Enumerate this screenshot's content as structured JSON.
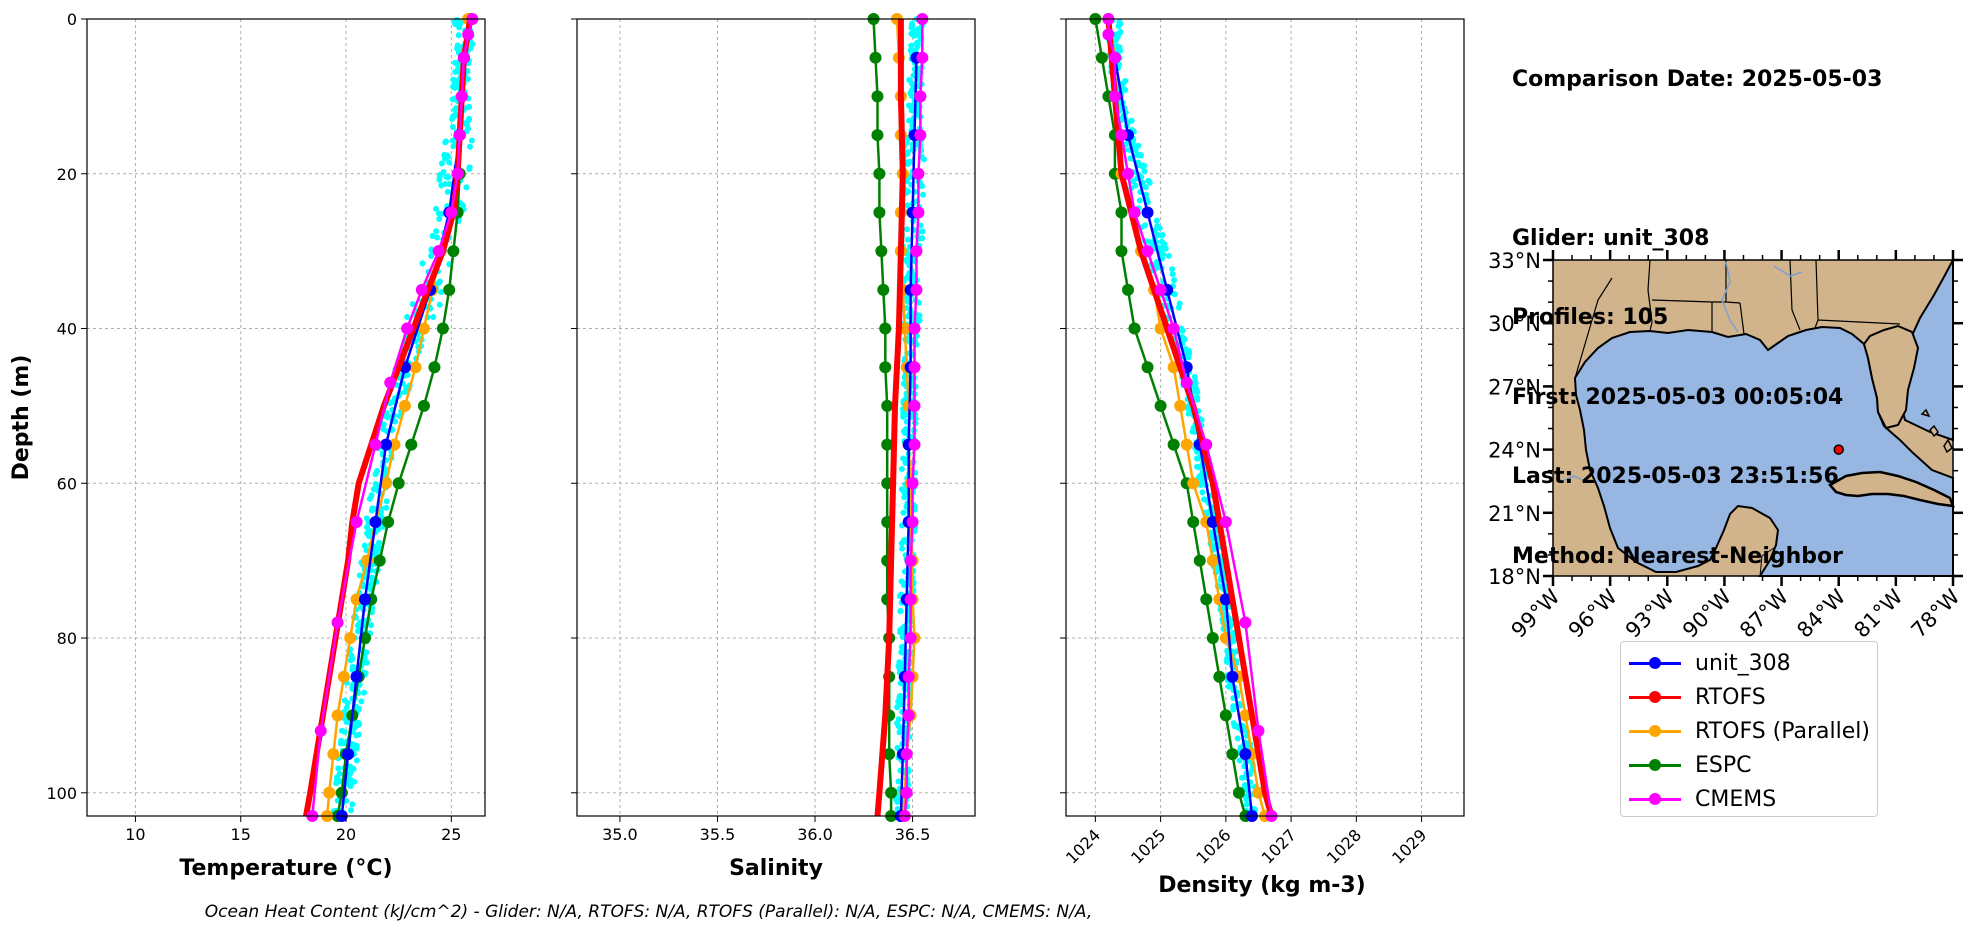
{
  "info": {
    "comparison_date": "Comparison Date: 2025-05-03",
    "glider": "Glider: unit_308",
    "profiles": "Profiles: 105",
    "first": "First: 2025-05-03 00:05:04",
    "last": "Last: 2025-05-03 23:51:56",
    "method": "Method: Nearest-Neighbor"
  },
  "footer": "Ocean Heat Content (kJ/cm^2) - Glider: N/A,  RTOFS: N/A,  RTOFS (Parallel): N/A,  ESPC: N/A,  CMEMS: N/A,",
  "colors": {
    "glider": "#0000ff",
    "glider_scatter": "#00ffff",
    "rtofs": "#ff0000",
    "rtofs_parallel": "#ffa500",
    "espc": "#008000",
    "cmems": "#ff00ff",
    "land": "#d2b48c",
    "ocean": "#97b6e1",
    "marker": "#ff0000"
  },
  "legend": [
    {
      "label": "unit_308",
      "color": "#0000ff"
    },
    {
      "label": "RTOFS",
      "color": "#ff0000"
    },
    {
      "label": "RTOFS (Parallel)",
      "color": "#ffa500"
    },
    {
      "label": "ESPC",
      "color": "#008000"
    },
    {
      "label": "CMEMS",
      "color": "#ff00ff"
    }
  ],
  "chart_data": [
    {
      "type": "line",
      "xlabel": "Temperature (°C)",
      "ylabel": "Depth (m)",
      "xlim": [
        7.7,
        26.6
      ],
      "ylim": [
        103,
        0
      ],
      "xticks": [
        10,
        15,
        20,
        25
      ],
      "yticks": [
        0,
        20,
        40,
        60,
        80,
        100
      ],
      "grid": true,
      "series": [
        {
          "name": "unit_308",
          "depth": [
            5,
            15,
            25,
            35,
            45,
            55,
            65,
            75,
            85,
            95,
            103
          ],
          "values": [
            25.6,
            25.4,
            24.9,
            24.0,
            22.8,
            21.9,
            21.4,
            20.9,
            20.5,
            20.1,
            19.8
          ]
        },
        {
          "name": "RTOFS",
          "depth": [
            0,
            5,
            10,
            15,
            20,
            25,
            30,
            35,
            40,
            45,
            50,
            55,
            60,
            65,
            70,
            75,
            80,
            85,
            90,
            95,
            100,
            103
          ],
          "values": [
            25.9,
            25.6,
            25.5,
            25.4,
            25.3,
            25.1,
            24.6,
            23.9,
            23.2,
            22.5,
            21.8,
            21.2,
            20.6,
            20.3,
            20.1,
            19.8,
            19.5,
            19.2,
            18.9,
            18.6,
            18.3,
            18.1
          ]
        },
        {
          "name": "RTOFS (Parallel)",
          "depth": [
            0,
            5,
            10,
            15,
            20,
            25,
            30,
            35,
            40,
            45,
            50,
            55,
            60,
            65,
            70,
            75,
            80,
            85,
            90,
            95,
            100,
            103
          ],
          "values": [
            25.8,
            25.6,
            25.5,
            25.4,
            25.3,
            25.0,
            24.5,
            24.1,
            23.7,
            23.3,
            22.8,
            22.3,
            21.9,
            21.4,
            21.0,
            20.5,
            20.2,
            19.9,
            19.6,
            19.4,
            19.2,
            19.1
          ]
        },
        {
          "name": "ESPC",
          "depth": [
            0,
            5,
            10,
            15,
            20,
            25,
            30,
            35,
            40,
            45,
            50,
            55,
            60,
            65,
            70,
            75,
            80,
            85,
            90,
            95,
            100,
            103
          ],
          "values": [
            25.9,
            25.6,
            25.5,
            25.4,
            25.4,
            25.3,
            25.1,
            24.9,
            24.6,
            24.2,
            23.7,
            23.1,
            22.5,
            22.0,
            21.6,
            21.2,
            20.9,
            20.6,
            20.3,
            20.0,
            19.8,
            19.6
          ]
        },
        {
          "name": "CMEMS",
          "depth": [
            0,
            2,
            5,
            10,
            15,
            20,
            25,
            30,
            35,
            40,
            47,
            55,
            65,
            78,
            92,
            103
          ],
          "values": [
            26.0,
            25.8,
            25.6,
            25.5,
            25.4,
            25.3,
            25.0,
            24.4,
            23.6,
            22.9,
            22.1,
            21.4,
            20.5,
            19.6,
            18.8,
            18.4
          ]
        }
      ]
    },
    {
      "type": "line",
      "xlabel": "Salinity",
      "xlim": [
        34.78,
        36.82
      ],
      "ylim": [
        103,
        0
      ],
      "xticks": [
        "35.0",
        "35.5",
        "36.0",
        "36.5"
      ],
      "yticks": [
        0,
        20,
        40,
        60,
        80,
        100
      ],
      "grid": true,
      "series": [
        {
          "name": "unit_308",
          "depth": [
            5,
            15,
            25,
            35,
            45,
            55,
            65,
            75,
            85,
            95,
            103
          ],
          "values": [
            36.52,
            36.51,
            36.5,
            36.49,
            36.49,
            36.48,
            36.48,
            36.47,
            36.46,
            36.45,
            36.44
          ]
        },
        {
          "name": "RTOFS",
          "depth": [
            0,
            10,
            20,
            30,
            40,
            50,
            60,
            70,
            80,
            90,
            100,
            103
          ],
          "values": [
            36.44,
            36.44,
            36.45,
            36.44,
            36.43,
            36.41,
            36.4,
            36.39,
            36.38,
            36.36,
            36.33,
            36.32
          ]
        },
        {
          "name": "RTOFS (Parallel)",
          "depth": [
            0,
            5,
            10,
            15,
            20,
            25,
            30,
            35,
            40,
            45,
            50,
            55,
            60,
            65,
            70,
            75,
            80,
            85,
            90,
            95,
            100,
            103
          ],
          "values": [
            36.42,
            36.43,
            36.44,
            36.44,
            36.45,
            36.44,
            36.44,
            36.45,
            36.46,
            36.47,
            36.48,
            36.48,
            36.49,
            36.49,
            36.5,
            36.5,
            36.51,
            36.5,
            36.49,
            36.47,
            36.46,
            36.45
          ]
        },
        {
          "name": "ESPC",
          "depth": [
            0,
            5,
            10,
            15,
            20,
            25,
            30,
            35,
            40,
            45,
            50,
            55,
            60,
            65,
            70,
            75,
            80,
            85,
            90,
            95,
            100,
            103
          ],
          "values": [
            36.3,
            36.31,
            36.32,
            36.32,
            36.33,
            36.33,
            36.34,
            36.35,
            36.36,
            36.36,
            36.37,
            36.37,
            36.37,
            36.37,
            36.37,
            36.37,
            36.38,
            36.38,
            36.38,
            36.38,
            36.39,
            36.39
          ]
        },
        {
          "name": "CMEMS",
          "depth": [
            0,
            5,
            10,
            15,
            20,
            25,
            30,
            35,
            40,
            45,
            50,
            55,
            60,
            65,
            70,
            75,
            80,
            85,
            90,
            95,
            100,
            103
          ],
          "values": [
            36.55,
            36.55,
            36.54,
            36.54,
            36.53,
            36.53,
            36.52,
            36.52,
            36.51,
            36.51,
            36.51,
            36.51,
            36.5,
            36.5,
            36.49,
            36.49,
            36.49,
            36.48,
            36.48,
            36.47,
            36.47,
            36.46
          ]
        }
      ]
    },
    {
      "type": "line",
      "xlabel": "Density (kg m-3)",
      "xlim": [
        1023.55,
        1029.65
      ],
      "ylim": [
        103,
        0
      ],
      "xticks": [
        "1024",
        "1025",
        "1026",
        "1027",
        "1028",
        "1029"
      ],
      "yticks": [
        0,
        20,
        40,
        60,
        80,
        100
      ],
      "grid": true,
      "series": [
        {
          "name": "unit_308",
          "depth": [
            5,
            15,
            25,
            35,
            45,
            55,
            65,
            75,
            85,
            95,
            103
          ],
          "values": [
            1024.3,
            1024.5,
            1024.8,
            1025.1,
            1025.4,
            1025.6,
            1025.8,
            1026.0,
            1026.1,
            1026.3,
            1026.4
          ]
        },
        {
          "name": "RTOFS",
          "depth": [
            0,
            10,
            20,
            30,
            40,
            50,
            60,
            70,
            80,
            90,
            100,
            103
          ],
          "values": [
            1024.2,
            1024.3,
            1024.4,
            1024.7,
            1025.1,
            1025.5,
            1025.8,
            1026.0,
            1026.2,
            1026.4,
            1026.6,
            1026.7
          ]
        },
        {
          "name": "RTOFS (Parallel)",
          "depth": [
            0,
            5,
            10,
            15,
            20,
            25,
            30,
            35,
            40,
            45,
            50,
            55,
            60,
            65,
            70,
            75,
            80,
            85,
            90,
            95,
            100,
            103
          ],
          "values": [
            1024.2,
            1024.3,
            1024.3,
            1024.4,
            1024.4,
            1024.6,
            1024.7,
            1024.9,
            1025.0,
            1025.2,
            1025.3,
            1025.4,
            1025.5,
            1025.7,
            1025.8,
            1025.9,
            1026.0,
            1026.2,
            1026.3,
            1026.4,
            1026.5,
            1026.6
          ]
        },
        {
          "name": "ESPC",
          "depth": [
            0,
            5,
            10,
            15,
            20,
            25,
            30,
            35,
            40,
            45,
            50,
            55,
            60,
            65,
            70,
            75,
            80,
            85,
            90,
            95,
            100,
            103
          ],
          "values": [
            1024.0,
            1024.1,
            1024.2,
            1024.3,
            1024.3,
            1024.4,
            1024.4,
            1024.5,
            1024.6,
            1024.8,
            1025.0,
            1025.2,
            1025.4,
            1025.5,
            1025.6,
            1025.7,
            1025.8,
            1025.9,
            1026.0,
            1026.1,
            1026.2,
            1026.3
          ]
        },
        {
          "name": "CMEMS",
          "depth": [
            0,
            2,
            5,
            10,
            15,
            20,
            25,
            30,
            35,
            40,
            47,
            55,
            65,
            78,
            92,
            103
          ],
          "values": [
            1024.2,
            1024.2,
            1024.3,
            1024.3,
            1024.4,
            1024.5,
            1024.6,
            1024.8,
            1025.0,
            1025.2,
            1025.4,
            1025.7,
            1026.0,
            1026.3,
            1026.5,
            1026.7
          ]
        }
      ]
    },
    {
      "type": "map",
      "lon_range": [
        -99,
        -78
      ],
      "lat_range": [
        18,
        33
      ],
      "xticks": [
        "99°W",
        "96°W",
        "93°W",
        "90°W",
        "87°W",
        "84°W",
        "81°W",
        "78°W"
      ],
      "yticks": [
        "33°N",
        "30°N",
        "27°N",
        "24°N",
        "21°N",
        "18°N"
      ],
      "marker": {
        "lon": -84.0,
        "lat": 24.0
      }
    }
  ]
}
